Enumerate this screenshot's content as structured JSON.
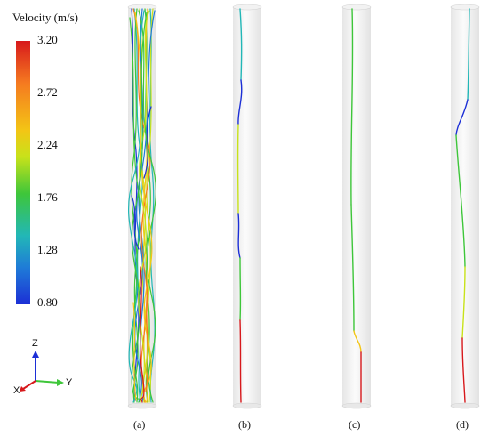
{
  "legend": {
    "title": "Velocity (m/s)",
    "ticks": [
      "3.20",
      "2.72",
      "2.24",
      "1.76",
      "1.28",
      "0.80"
    ],
    "colors": [
      "#d7191c",
      "#f57a20",
      "#f3c515",
      "#c8e21a",
      "#3ec63a",
      "#22b7b7",
      "#1f7cd7",
      "#1c2fd6"
    ]
  },
  "axes": {
    "z": "Z",
    "y": "Y",
    "x": "X"
  },
  "panels": [
    {
      "label": "(a)"
    },
    {
      "label": "(b)"
    },
    {
      "label": "(c)"
    },
    {
      "label": "(d)"
    }
  ]
}
